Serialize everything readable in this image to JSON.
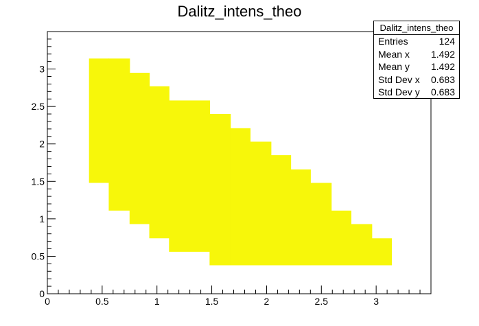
{
  "chart_data": {
    "type": "heatmap",
    "title": "Dalitz_intens_theo",
    "xlabel": "",
    "ylabel": "",
    "xlim": [
      0,
      3.5
    ],
    "ylim": [
      0,
      3.5
    ],
    "xticks": [
      "0",
      "0.5",
      "1",
      "1.5",
      "2",
      "2.5",
      "3"
    ],
    "yticks": [
      "0",
      "0.5",
      "1",
      "1.5",
      "2",
      "2.5",
      "3"
    ],
    "fill_color": "#f7f70a",
    "filled_columns": [
      {
        "x0": 0.38,
        "x1": 0.56,
        "ymin": 1.48,
        "ymax": 3.14
      },
      {
        "x0": 0.56,
        "x1": 0.75,
        "ymin": 1.11,
        "ymax": 3.14
      },
      {
        "x0": 0.75,
        "x1": 0.93,
        "ymin": 0.93,
        "ymax": 2.95
      },
      {
        "x0": 0.93,
        "x1": 1.11,
        "ymin": 0.74,
        "ymax": 2.77
      },
      {
        "x0": 1.11,
        "x1": 1.48,
        "ymin": 0.56,
        "ymax": 2.58
      },
      {
        "x0": 1.48,
        "x1": 1.67,
        "ymin": 0.38,
        "ymax": 2.4
      },
      {
        "x0": 1.67,
        "x1": 1.85,
        "ymin": 0.38,
        "ymax": 2.21
      },
      {
        "x0": 1.85,
        "x1": 2.04,
        "ymin": 0.38,
        "ymax": 2.03
      },
      {
        "x0": 2.04,
        "x1": 2.22,
        "ymin": 0.38,
        "ymax": 1.85
      },
      {
        "x0": 2.22,
        "x1": 2.4,
        "ymin": 0.38,
        "ymax": 1.66
      },
      {
        "x0": 2.4,
        "x1": 2.59,
        "ymin": 0.38,
        "ymax": 1.48
      },
      {
        "x0": 2.59,
        "x1": 2.77,
        "ymin": 0.38,
        "ymax": 1.11
      },
      {
        "x0": 2.77,
        "x1": 2.96,
        "ymin": 0.38,
        "ymax": 0.93
      },
      {
        "x0": 2.96,
        "x1": 3.14,
        "ymin": 0.38,
        "ymax": 0.74
      }
    ]
  },
  "stats": {
    "title": "Dalitz_intens_theo",
    "rows": [
      {
        "label": "Entries",
        "value": "124"
      },
      {
        "label": "Mean x",
        "value": "1.492"
      },
      {
        "label": "Mean y",
        "value": "1.492"
      },
      {
        "label": "Std Dev x",
        "value": "0.683"
      },
      {
        "label": "Std Dev y",
        "value": "0.683"
      }
    ]
  }
}
